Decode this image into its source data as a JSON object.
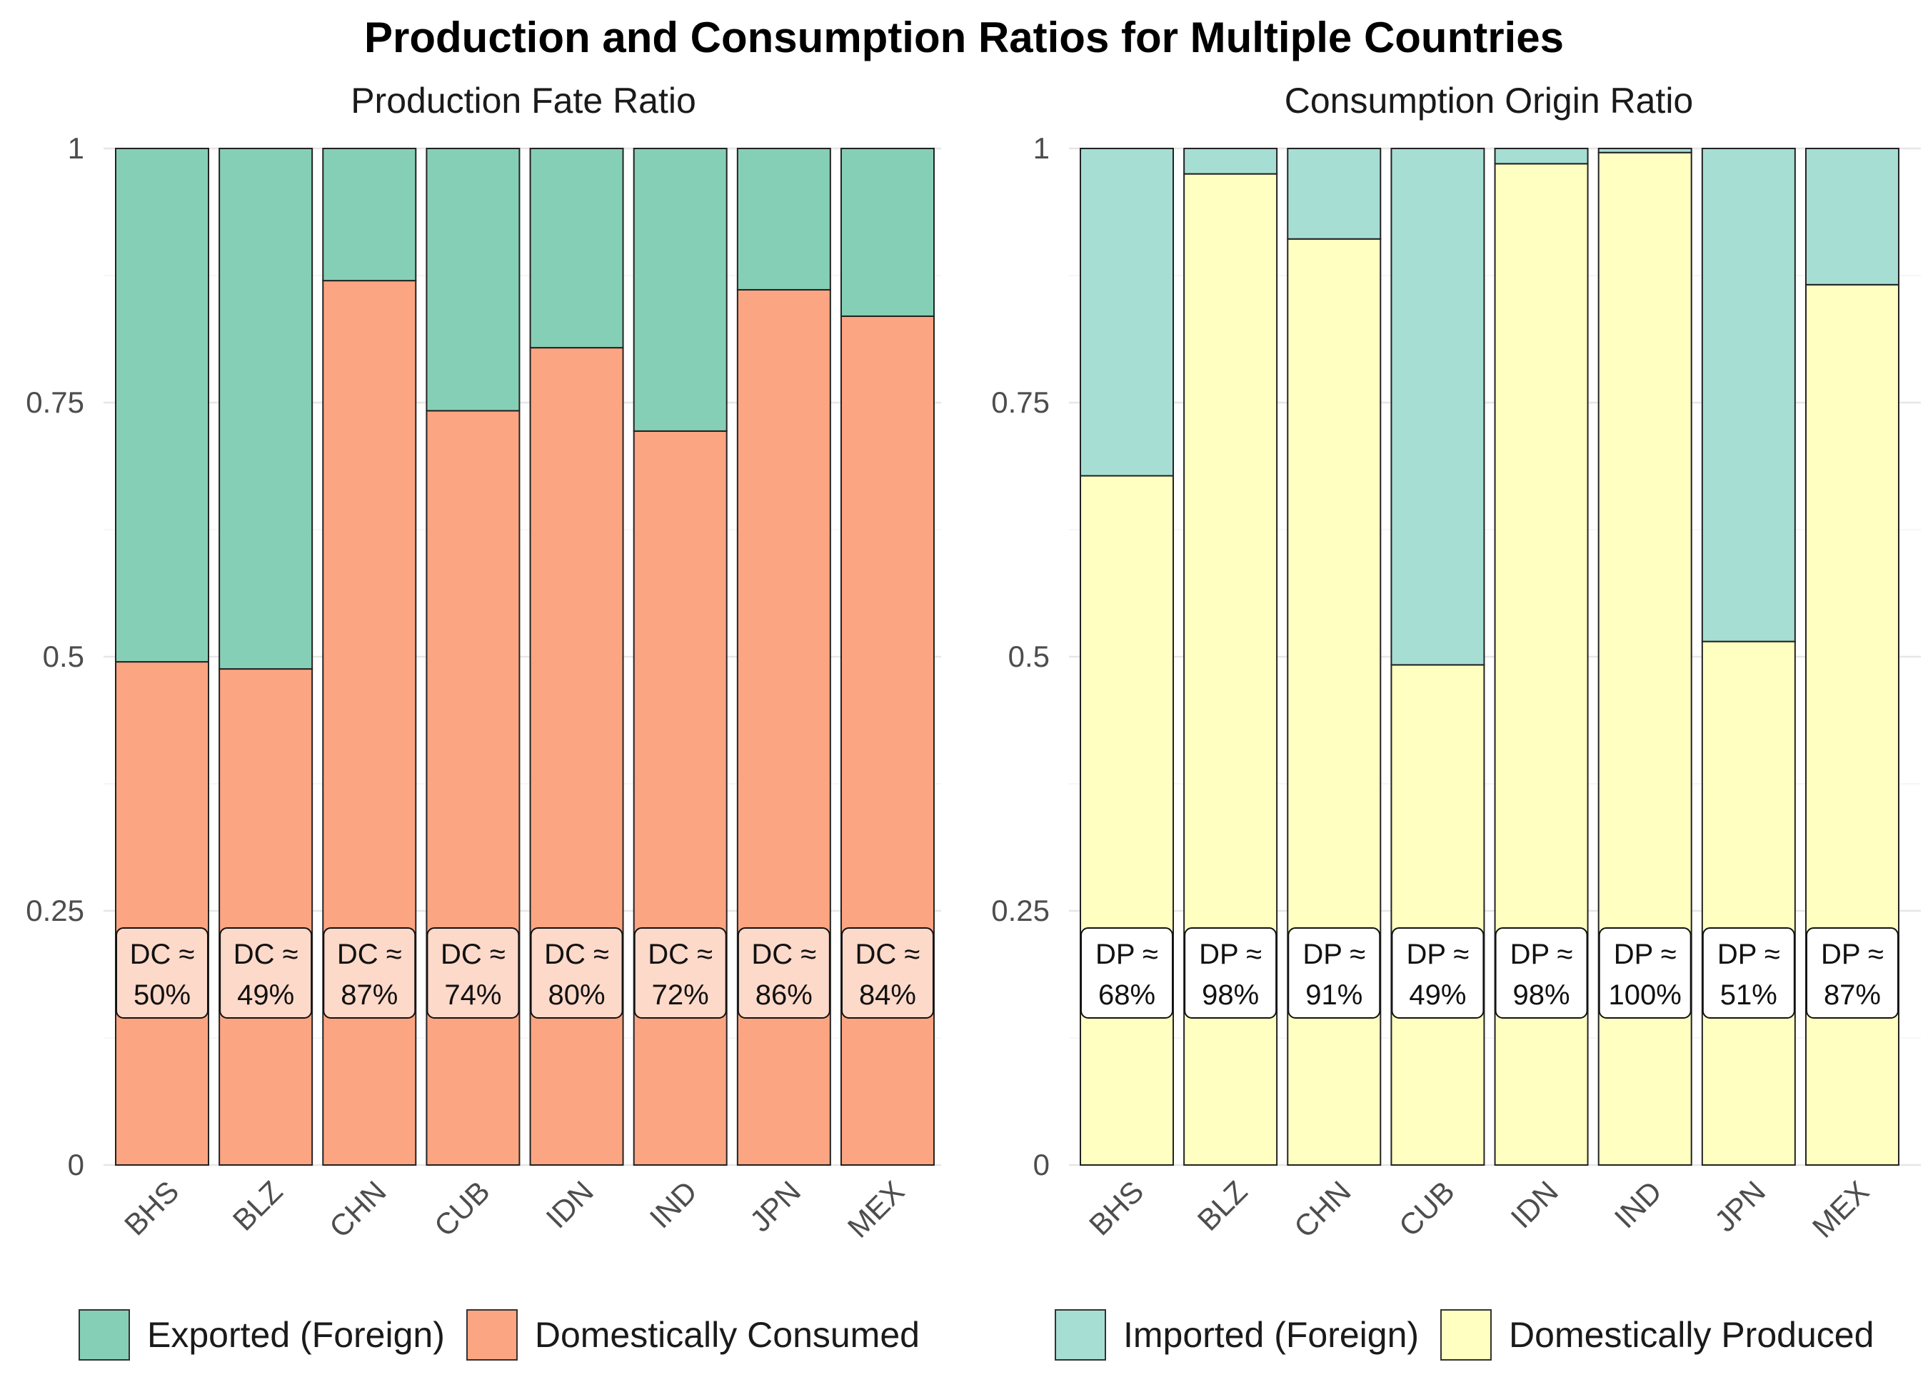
{
  "title": "Production and Consumption Ratios for Multiple Countries",
  "chart_data": [
    {
      "type": "bar",
      "stacked": true,
      "title": "Production Fate Ratio",
      "xlabel": "",
      "ylabel": "",
      "ylim": [
        0,
        1
      ],
      "yticks": [
        0,
        0.25,
        0.5,
        0.75,
        1
      ],
      "ytick_labels": [
        "0",
        "0.25",
        "0.5",
        "0.75",
        "1"
      ],
      "grid": true,
      "legend_position": "bottom",
      "categories": [
        "BHS",
        "BLZ",
        "CHN",
        "CUB",
        "IDN",
        "IND",
        "JPN",
        "MEX"
      ],
      "series": [
        {
          "name": "Domestically Consumed",
          "color": "#FCA582",
          "values": [
            0.495,
            0.488,
            0.87,
            0.742,
            0.804,
            0.722,
            0.861,
            0.835
          ]
        },
        {
          "name": "Exported (Foreign)",
          "color": "#86CFB7",
          "values": [
            0.505,
            0.512,
            0.13,
            0.258,
            0.196,
            0.278,
            0.139,
            0.165
          ]
        }
      ],
      "label_values": [
        0.495,
        0.488,
        0.87,
        0.742,
        0.804,
        0.722,
        0.861,
        0.835
      ],
      "annotation_line1": "DC ≈",
      "annotations": [
        "50%",
        "49%",
        "87%",
        "74%",
        "80%",
        "72%",
        "86%",
        "84%"
      ],
      "annotation_fill": "#FDD9C9"
    },
    {
      "type": "bar",
      "stacked": true,
      "title": "Consumption Origin Ratio",
      "xlabel": "",
      "ylabel": "",
      "ylim": [
        0,
        1
      ],
      "yticks": [
        0,
        0.25,
        0.5,
        0.75,
        1
      ],
      "ytick_labels": [
        "0",
        "0.25",
        "0.5",
        "0.75",
        "1"
      ],
      "grid": true,
      "legend_position": "bottom",
      "categories": [
        "BHS",
        "BLZ",
        "CHN",
        "CUB",
        "IDN",
        "IND",
        "JPN",
        "MEX"
      ],
      "series": [
        {
          "name": "Domestically Produced",
          "color": "#FFFFC2",
          "values": [
            0.678,
            0.975,
            0.911,
            0.492,
            0.985,
            0.996,
            0.515,
            0.866
          ]
        },
        {
          "name": "Imported (Foreign)",
          "color": "#A6DED4",
          "values": [
            0.322,
            0.025,
            0.089,
            0.508,
            0.015,
            0.004,
            0.485,
            0.134
          ]
        }
      ],
      "label_values": [
        0.678,
        0.975,
        0.911,
        0.492,
        0.985,
        0.996,
        0.515,
        0.866
      ],
      "annotation_line1": "DP ≈",
      "annotations": [
        "68%",
        "98%",
        "91%",
        "49%",
        "98%",
        "100%",
        "51%",
        "87%"
      ],
      "annotation_fill": "#FFFFFF"
    }
  ],
  "legends": [
    {
      "items": [
        {
          "label": "Exported (Foreign)",
          "color": "#86CFB7"
        },
        {
          "label": "Domestically Consumed",
          "color": "#FCA582"
        }
      ]
    },
    {
      "items": [
        {
          "label": "Imported (Foreign)",
          "color": "#A6DED4"
        },
        {
          "label": "Domestically Produced",
          "color": "#FFFFC2"
        }
      ]
    }
  ]
}
